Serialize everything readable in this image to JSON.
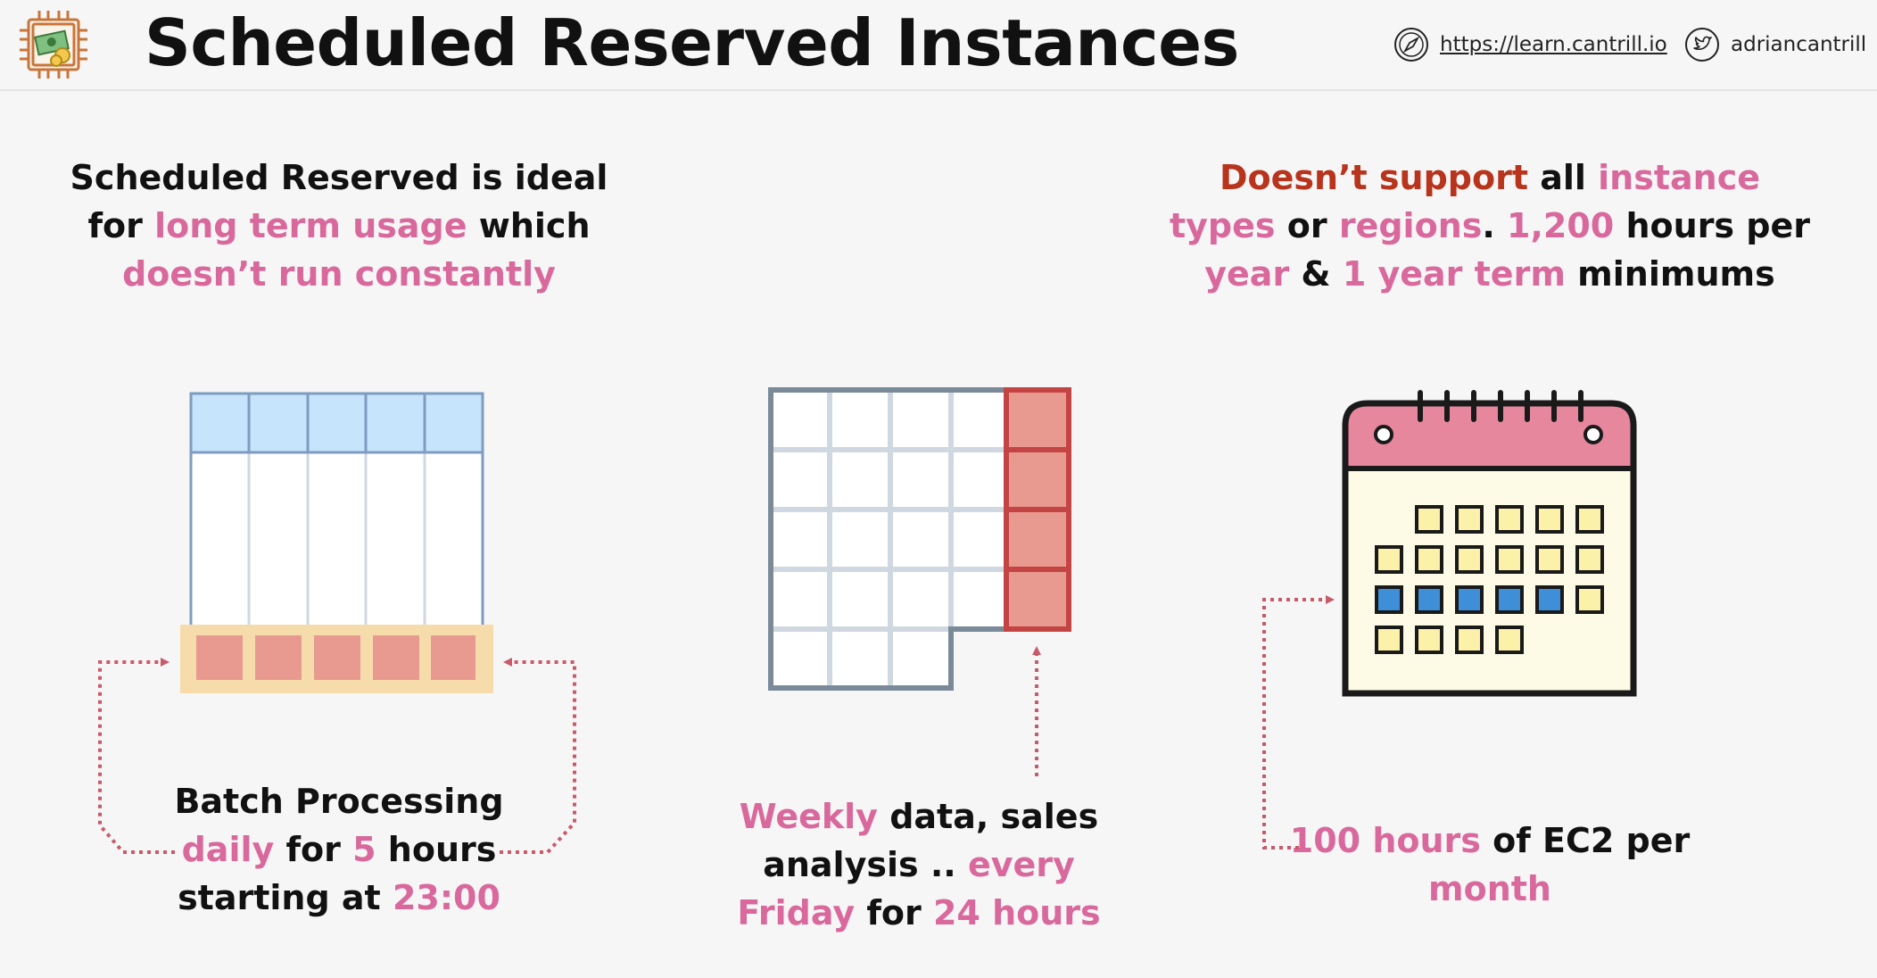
{
  "header": {
    "title": "Scheduled Reserved Instances",
    "website": "https://learn.cantrill.io",
    "twitter": "adriancantrill",
    "icons": [
      "chip-money-icon",
      "compass-icon",
      "twitter-icon"
    ]
  },
  "intro": {
    "line1": "Scheduled Reserved is ideal",
    "line2_a": "for ",
    "line2_b": "long term usage",
    "line2_c": " which",
    "line3": "doesn’t run constantly"
  },
  "limits": {
    "line1_a": "Doesn’t support",
    "line1_b": " all ",
    "line1_c": "instance",
    "line2_a": "types",
    "line2_b": " or ",
    "line2_c": "regions",
    "line2_d": ". ",
    "line2_e": "1,200",
    "line2_f": " hours per",
    "line3_a": "year",
    "line3_b": " & ",
    "line3_c": "1 year term",
    "line3_d": " minimums"
  },
  "batch": {
    "line1": "Batch Processing",
    "line2_a": "daily",
    "line2_b": " for ",
    "line2_c": "5",
    "line2_d": " hours",
    "line3_a": "starting at ",
    "line3_b": "23:00"
  },
  "weekly": {
    "line1_a": "Weekly",
    "line1_b": " data, sales",
    "line2_a": "analysis .. ",
    "line2_b": "every",
    "line3_a": "Friday",
    "line3_b": " for ",
    "line3_c": "24 hours"
  },
  "monthly": {
    "line1_a": "100 hours",
    "line1_b": " of EC2 per",
    "line2": "month"
  },
  "colors": {
    "accent_pink": "#d9699c",
    "accent_red": "#b8341c",
    "header_blue": "#c6e4fb",
    "highlight_orange": "#f7dcab",
    "block_red": "#e99a90",
    "calendar_pink": "#e6879d",
    "calendar_yellow": "#fcf1a8",
    "calendar_blue": "#3e8fd8"
  }
}
